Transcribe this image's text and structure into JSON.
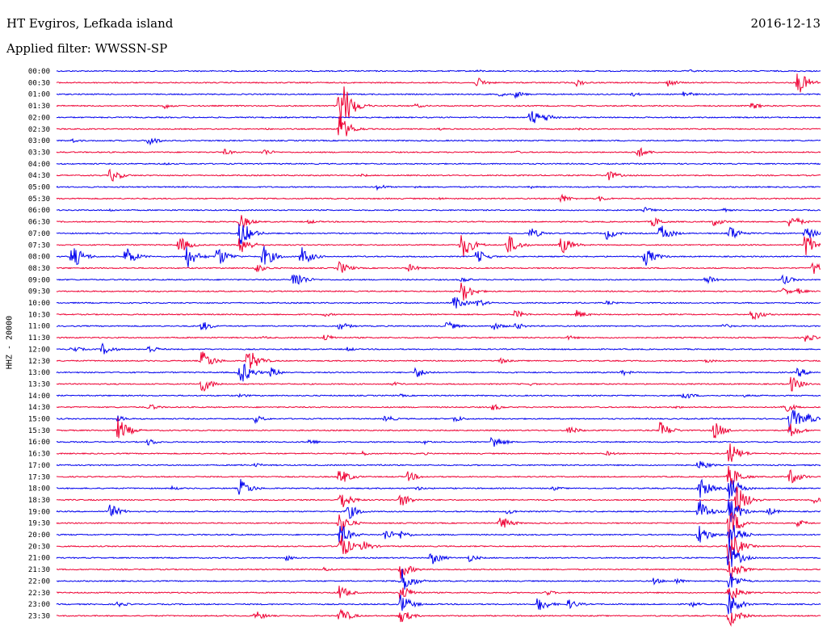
{
  "header": {
    "station": "HT Evgiros, Lefkada island",
    "filter": "Applied filter: WWSSN-SP",
    "date": "2016-12-13"
  },
  "chart_data": {
    "type": "line",
    "title": "HT Evgiros, Lefkada island",
    "ylabel": "HHZ - 20000",
    "trace_colors": [
      "#0000ee",
      "#ee0033"
    ],
    "grid": false,
    "rows": [
      {
        "label": "00:00",
        "events": [
          [
            0.83,
            2
          ],
          [
            0.55,
            2
          ],
          [
            0.3,
            1
          ]
        ]
      },
      {
        "label": "00:30",
        "events": [
          [
            0.55,
            7
          ],
          [
            0.68,
            5
          ],
          [
            0.8,
            5
          ],
          [
            0.97,
            17
          ]
        ]
      },
      {
        "label": "01:00",
        "events": [
          [
            0.6,
            5
          ],
          [
            0.75,
            4
          ],
          [
            0.82,
            5
          ],
          [
            0.58,
            3
          ]
        ]
      },
      {
        "label": "01:30",
        "events": [
          [
            0.14,
            4
          ],
          [
            0.37,
            45
          ],
          [
            0.47,
            3
          ],
          [
            0.91,
            5
          ]
        ]
      },
      {
        "label": "02:00",
        "events": [
          [
            0.62,
            12
          ],
          [
            0.64,
            6
          ],
          [
            0.3,
            1
          ]
        ]
      },
      {
        "label": "02:30",
        "events": [
          [
            0.37,
            20
          ],
          [
            0.27,
            2
          ],
          [
            0.5,
            2
          ],
          [
            0.68,
            2
          ]
        ]
      },
      {
        "label": "03:00",
        "events": [
          [
            0.12,
            7
          ],
          [
            0.02,
            3
          ],
          [
            0.7,
            1
          ]
        ]
      },
      {
        "label": "03:30",
        "events": [
          [
            0.22,
            4
          ],
          [
            0.27,
            5
          ],
          [
            0.76,
            8
          ],
          [
            0.6,
            2
          ]
        ]
      },
      {
        "label": "04:00",
        "events": [
          [
            0.14,
            2
          ],
          [
            0.5,
            1
          ]
        ]
      },
      {
        "label": "04:30",
        "events": [
          [
            0.07,
            10
          ],
          [
            0.72,
            8
          ],
          [
            0.4,
            2
          ]
        ]
      },
      {
        "label": "05:00",
        "events": [
          [
            0.42,
            4
          ],
          [
            0.47,
            2
          ],
          [
            0.62,
            2
          ]
        ]
      },
      {
        "label": "05:30",
        "events": [
          [
            0.66,
            6
          ],
          [
            0.71,
            4
          ],
          [
            0.5,
            2
          ]
        ]
      },
      {
        "label": "06:00",
        "events": [
          [
            0.07,
            2
          ],
          [
            0.77,
            4
          ],
          [
            0.87,
            3
          ]
        ]
      },
      {
        "label": "06:30",
        "events": [
          [
            0.24,
            10
          ],
          [
            0.33,
            3
          ],
          [
            0.78,
            7
          ],
          [
            0.86,
            6
          ],
          [
            0.96,
            10
          ]
        ]
      },
      {
        "label": "07:00",
        "events": [
          [
            0.24,
            20
          ],
          [
            0.62,
            8
          ],
          [
            0.72,
            8
          ],
          [
            0.79,
            13
          ],
          [
            0.88,
            12
          ],
          [
            0.98,
            10
          ]
        ]
      },
      {
        "label": "07:30",
        "events": [
          [
            0.16,
            12
          ],
          [
            0.24,
            14
          ],
          [
            0.53,
            20
          ],
          [
            0.59,
            15
          ],
          [
            0.66,
            13
          ],
          [
            0.98,
            17
          ]
        ]
      },
      {
        "label": "08:00",
        "events": [
          [
            0.02,
            18
          ],
          [
            0.09,
            14
          ],
          [
            0.17,
            16
          ],
          [
            0.21,
            15
          ],
          [
            0.27,
            16
          ],
          [
            0.32,
            14
          ],
          [
            0.55,
            10
          ],
          [
            0.77,
            13
          ]
        ]
      },
      {
        "label": "08:30",
        "events": [
          [
            0.26,
            7
          ],
          [
            0.37,
            9
          ],
          [
            0.46,
            6
          ],
          [
            0.99,
            10
          ]
        ]
      },
      {
        "label": "09:00",
        "events": [
          [
            0.31,
            14
          ],
          [
            0.85,
            8
          ],
          [
            0.95,
            7
          ],
          [
            0.53,
            4
          ]
        ]
      },
      {
        "label": "09:30",
        "events": [
          [
            0.53,
            15
          ],
          [
            0.97,
            4
          ],
          [
            0.95,
            5
          ]
        ]
      },
      {
        "label": "10:00",
        "events": [
          [
            0.52,
            10
          ],
          [
            0.55,
            6
          ],
          [
            0.72,
            3
          ]
        ]
      },
      {
        "label": "10:30",
        "events": [
          [
            0.6,
            6
          ],
          [
            0.68,
            6
          ],
          [
            0.91,
            9
          ],
          [
            0.35,
            3
          ]
        ]
      },
      {
        "label": "11:00",
        "events": [
          [
            0.19,
            7
          ],
          [
            0.37,
            6
          ],
          [
            0.51,
            7
          ],
          [
            0.57,
            6
          ],
          [
            0.87,
            4
          ],
          [
            0.6,
            5
          ]
        ]
      },
      {
        "label": "11:30",
        "events": [
          [
            0.35,
            5
          ],
          [
            0.67,
            3
          ],
          [
            0.98,
            6
          ],
          [
            0.27,
            2
          ]
        ]
      },
      {
        "label": "12:00",
        "events": [
          [
            0.02,
            5
          ],
          [
            0.06,
            8
          ],
          [
            0.12,
            6
          ],
          [
            0.38,
            3
          ]
        ]
      },
      {
        "label": "12:30",
        "events": [
          [
            0.19,
            15
          ],
          [
            0.25,
            18
          ],
          [
            0.58,
            4
          ],
          [
            0.85,
            3
          ]
        ]
      },
      {
        "label": "13:00",
        "events": [
          [
            0.24,
            18
          ],
          [
            0.28,
            7
          ],
          [
            0.47,
            8
          ],
          [
            0.74,
            4
          ],
          [
            0.97,
            7
          ]
        ]
      },
      {
        "label": "13:30",
        "events": [
          [
            0.19,
            12
          ],
          [
            0.44,
            3
          ],
          [
            0.96,
            12
          ],
          [
            0.62,
            2
          ]
        ]
      },
      {
        "label": "14:00",
        "events": [
          [
            0.24,
            3
          ],
          [
            0.45,
            2
          ],
          [
            0.82,
            6
          ],
          [
            0.9,
            2
          ]
        ]
      },
      {
        "label": "14:30",
        "events": [
          [
            0.12,
            5
          ],
          [
            0.57,
            5
          ],
          [
            0.95,
            9
          ],
          [
            0.81,
            2
          ]
        ]
      },
      {
        "label": "15:00",
        "events": [
          [
            0.08,
            4
          ],
          [
            0.26,
            5
          ],
          [
            0.43,
            5
          ],
          [
            0.52,
            5
          ],
          [
            0.96,
            18
          ],
          [
            0.98,
            9
          ]
        ]
      },
      {
        "label": "15:30",
        "events": [
          [
            0.08,
            17
          ],
          [
            0.67,
            6
          ],
          [
            0.79,
            12
          ],
          [
            0.86,
            13
          ],
          [
            0.96,
            10
          ]
        ]
      },
      {
        "label": "16:00",
        "events": [
          [
            0.12,
            5
          ],
          [
            0.33,
            4
          ],
          [
            0.57,
            11
          ],
          [
            0.48,
            3
          ]
        ]
      },
      {
        "label": "16:30",
        "events": [
          [
            0.4,
            3
          ],
          [
            0.72,
            3
          ],
          [
            0.88,
            16
          ],
          [
            0.48,
            2
          ]
        ]
      },
      {
        "label": "17:00",
        "events": [
          [
            0.24,
            2
          ],
          [
            0.26,
            3
          ],
          [
            0.42,
            2
          ],
          [
            0.84,
            8
          ]
        ]
      },
      {
        "label": "17:30",
        "events": [
          [
            0.37,
            12
          ],
          [
            0.46,
            7
          ],
          [
            0.88,
            17
          ],
          [
            0.96,
            11
          ]
        ]
      },
      {
        "label": "18:00",
        "events": [
          [
            0.15,
            3
          ],
          [
            0.24,
            13
          ],
          [
            0.47,
            3
          ],
          [
            0.65,
            3
          ],
          [
            0.84,
            17
          ],
          [
            0.88,
            18
          ]
        ]
      },
      {
        "label": "18:30",
        "events": [
          [
            0.37,
            15
          ],
          [
            0.45,
            10
          ],
          [
            0.89,
            22
          ],
          [
            0.99,
            5
          ]
        ]
      },
      {
        "label": "19:00",
        "events": [
          [
            0.07,
            10
          ],
          [
            0.38,
            12
          ],
          [
            0.59,
            4
          ],
          [
            0.84,
            18
          ],
          [
            0.88,
            20
          ],
          [
            0.93,
            6
          ]
        ]
      },
      {
        "label": "19:30",
        "events": [
          [
            0.37,
            14
          ],
          [
            0.58,
            11
          ],
          [
            0.88,
            24
          ],
          [
            0.97,
            5
          ]
        ]
      },
      {
        "label": "20:00",
        "events": [
          [
            0.37,
            16
          ],
          [
            0.43,
            8
          ],
          [
            0.45,
            6
          ],
          [
            0.84,
            15
          ],
          [
            0.88,
            22
          ]
        ]
      },
      {
        "label": "20:30",
        "events": [
          [
            0.37,
            20
          ],
          [
            0.4,
            8
          ],
          [
            0.88,
            24
          ]
        ]
      },
      {
        "label": "21:00",
        "events": [
          [
            0.3,
            4
          ],
          [
            0.49,
            10
          ],
          [
            0.54,
            5
          ],
          [
            0.88,
            20
          ]
        ]
      },
      {
        "label": "21:30",
        "events": [
          [
            0.35,
            3
          ],
          [
            0.45,
            12
          ],
          [
            0.88,
            16
          ]
        ]
      },
      {
        "label": "22:00",
        "events": [
          [
            0.45,
            20
          ],
          [
            0.78,
            5
          ],
          [
            0.81,
            4
          ],
          [
            0.88,
            14
          ]
        ]
      },
      {
        "label": "22:30",
        "events": [
          [
            0.45,
            12
          ],
          [
            0.64,
            4
          ],
          [
            0.88,
            14
          ],
          [
            0.37,
            10
          ]
        ]
      },
      {
        "label": "23:00",
        "events": [
          [
            0.08,
            4
          ],
          [
            0.45,
            14
          ],
          [
            0.63,
            11
          ],
          [
            0.67,
            7
          ],
          [
            0.83,
            4
          ],
          [
            0.88,
            16
          ]
        ]
      },
      {
        "label": "23:30",
        "events": [
          [
            0.26,
            7
          ],
          [
            0.37,
            12
          ],
          [
            0.45,
            10
          ],
          [
            0.88,
            15
          ]
        ]
      }
    ]
  }
}
